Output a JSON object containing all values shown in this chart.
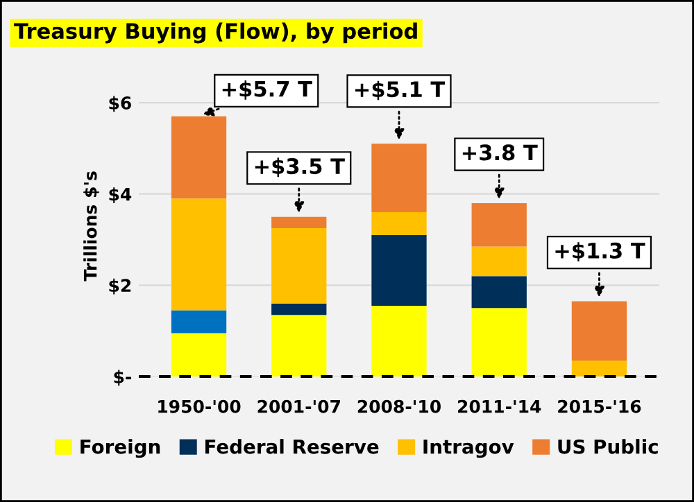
{
  "chart_data": {
    "type": "bar",
    "stacked": true,
    "title": "Treasury Buying (Flow), by period",
    "ylabel": "Trillions $'s",
    "categories": [
      "1950-'00",
      "2001-'07",
      "2008-'10",
      "2011-'14",
      "2015-'16"
    ],
    "series": [
      {
        "name": "Foreign",
        "color": "#ffff00",
        "values": [
          0.95,
          1.35,
          1.55,
          1.5,
          0
        ]
      },
      {
        "name": "Federal Reserve",
        "color": "#002f5a",
        "colors": [
          "#0070c0",
          "#002f5a",
          "#002f5a",
          "#002f5a",
          "#002f5a"
        ],
        "values": [
          0.5,
          0.25,
          1.55,
          0.7,
          0
        ]
      },
      {
        "name": "Intragov",
        "color": "#ffc000",
        "values": [
          2.45,
          1.65,
          0.5,
          0.65,
          0.35
        ]
      },
      {
        "name": "US Public",
        "color": "#ed7d31",
        "values": [
          1.8,
          0.25,
          1.5,
          0.95,
          1.3
        ]
      }
    ],
    "annotations": [
      {
        "text": "+$5.7 T",
        "x": "1950-'00",
        "y": 5.7
      },
      {
        "text": "+$3.5 T",
        "x": "2001-'07",
        "y": 3.5
      },
      {
        "text": "+$5.1 T",
        "x": "2008-'10",
        "y": 5.1
      },
      {
        "text": "+3.8 T",
        "x": "2011-'14",
        "y": 3.8
      },
      {
        "text": "+$1.3 T",
        "x": "2015-'16",
        "y": 1.65
      }
    ],
    "ylim": [
      0,
      6.6
    ],
    "yticks": [
      {
        "value": 0,
        "label": "$-"
      },
      {
        "value": 2,
        "label": "$2"
      },
      {
        "value": 4,
        "label": "$4"
      },
      {
        "value": 6,
        "label": "$6"
      }
    ],
    "grid": "y",
    "ref_lines": [
      {
        "axis": "y",
        "value": 0,
        "color": "#000000",
        "line_style": "dashed"
      }
    ],
    "legend": "bottom"
  }
}
